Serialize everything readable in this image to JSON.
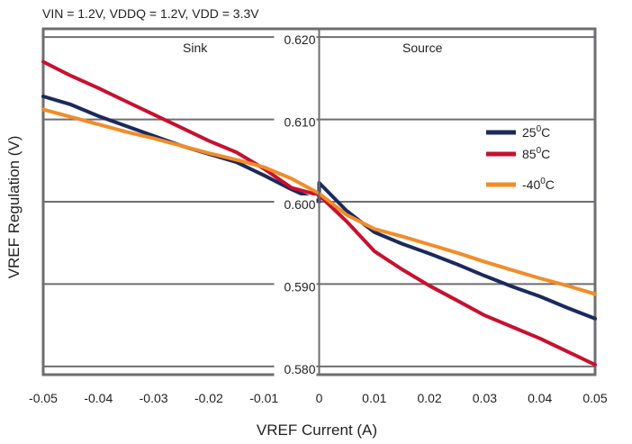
{
  "chart_data": {
    "type": "line",
    "subtitle": "VIN = 1.2V, VDDQ = 1.2V,  VDD = 3.3V",
    "xlabel": "VREF Current (A)",
    "ylabel": "VREF Regulation (V)",
    "xlim": [
      -0.05,
      0.05
    ],
    "ylim": [
      0.579,
      0.621
    ],
    "x_ticks": [
      -0.05,
      -0.04,
      -0.03,
      -0.02,
      -0.01,
      0,
      0.01,
      0.02,
      0.03,
      0.04,
      0.05
    ],
    "x_tick_labels": [
      "-0.05",
      "-0.04",
      "-0.03",
      "-0.02",
      "-0.01",
      "0",
      "0.01",
      "0.02",
      "0.03",
      "0.04",
      "0.05"
    ],
    "y_gridlines": [
      0.58,
      0.59,
      0.6,
      0.61,
      0.62
    ],
    "y_tick_labels": [
      "0.620",
      "0.610",
      "0.600",
      "0.590",
      "0.580"
    ],
    "region_labels": {
      "left": "Sink",
      "right": "Source"
    },
    "grid": true,
    "legend_position": "right",
    "series": [
      {
        "name": "25",
        "unit_sup": "0",
        "unit": "C",
        "color": "#1b2a5c",
        "x": [
          -0.05,
          -0.045,
          -0.04,
          -0.035,
          -0.03,
          -0.025,
          -0.02,
          -0.015,
          -0.01,
          -0.005,
          0,
          0,
          0.005,
          0.01,
          0.015,
          0.02,
          0.025,
          0.03,
          0.035,
          0.04,
          0.045,
          0.05
        ],
        "y": [
          0.6128,
          0.6118,
          0.6104,
          0.6092,
          0.608,
          0.6068,
          0.6058,
          0.6048,
          0.6032,
          0.6015,
          0.6,
          0.6023,
          0.5989,
          0.5963,
          0.5949,
          0.5937,
          0.5924,
          0.591,
          0.5897,
          0.5885,
          0.5871,
          0.5858
        ]
      },
      {
        "name": "85",
        "unit_sup": "0",
        "unit": "C",
        "color": "#c8102e",
        "x": [
          -0.05,
          -0.045,
          -0.04,
          -0.035,
          -0.03,
          -0.025,
          -0.02,
          -0.015,
          -0.01,
          -0.005,
          0,
          0.005,
          0.01,
          0.015,
          0.02,
          0.025,
          0.03,
          0.035,
          0.04,
          0.045,
          0.05
        ],
        "y": [
          0.617,
          0.6153,
          0.6138,
          0.6122,
          0.6106,
          0.609,
          0.6074,
          0.606,
          0.604,
          0.6017,
          0.6008,
          0.5976,
          0.594,
          0.5918,
          0.5898,
          0.588,
          0.5862,
          0.5848,
          0.5834,
          0.5818,
          0.5802
        ]
      },
      {
        "name": "-40",
        "unit_sup": "0",
        "unit": "C",
        "color": "#f28c28",
        "x": [
          -0.05,
          -0.045,
          -0.04,
          -0.035,
          -0.03,
          -0.025,
          -0.02,
          -0.015,
          -0.01,
          -0.005,
          0,
          0.005,
          0.01,
          0.015,
          0.02,
          0.025,
          0.03,
          0.035,
          0.04,
          0.045,
          0.05
        ],
        "y": [
          0.6112,
          0.6103,
          0.6094,
          0.6085,
          0.6077,
          0.6068,
          0.6059,
          0.6051,
          0.6042,
          0.6028,
          0.601,
          0.5984,
          0.5967,
          0.5958,
          0.5948,
          0.5938,
          0.5927,
          0.5917,
          0.5907,
          0.5898,
          0.5888
        ]
      }
    ]
  }
}
